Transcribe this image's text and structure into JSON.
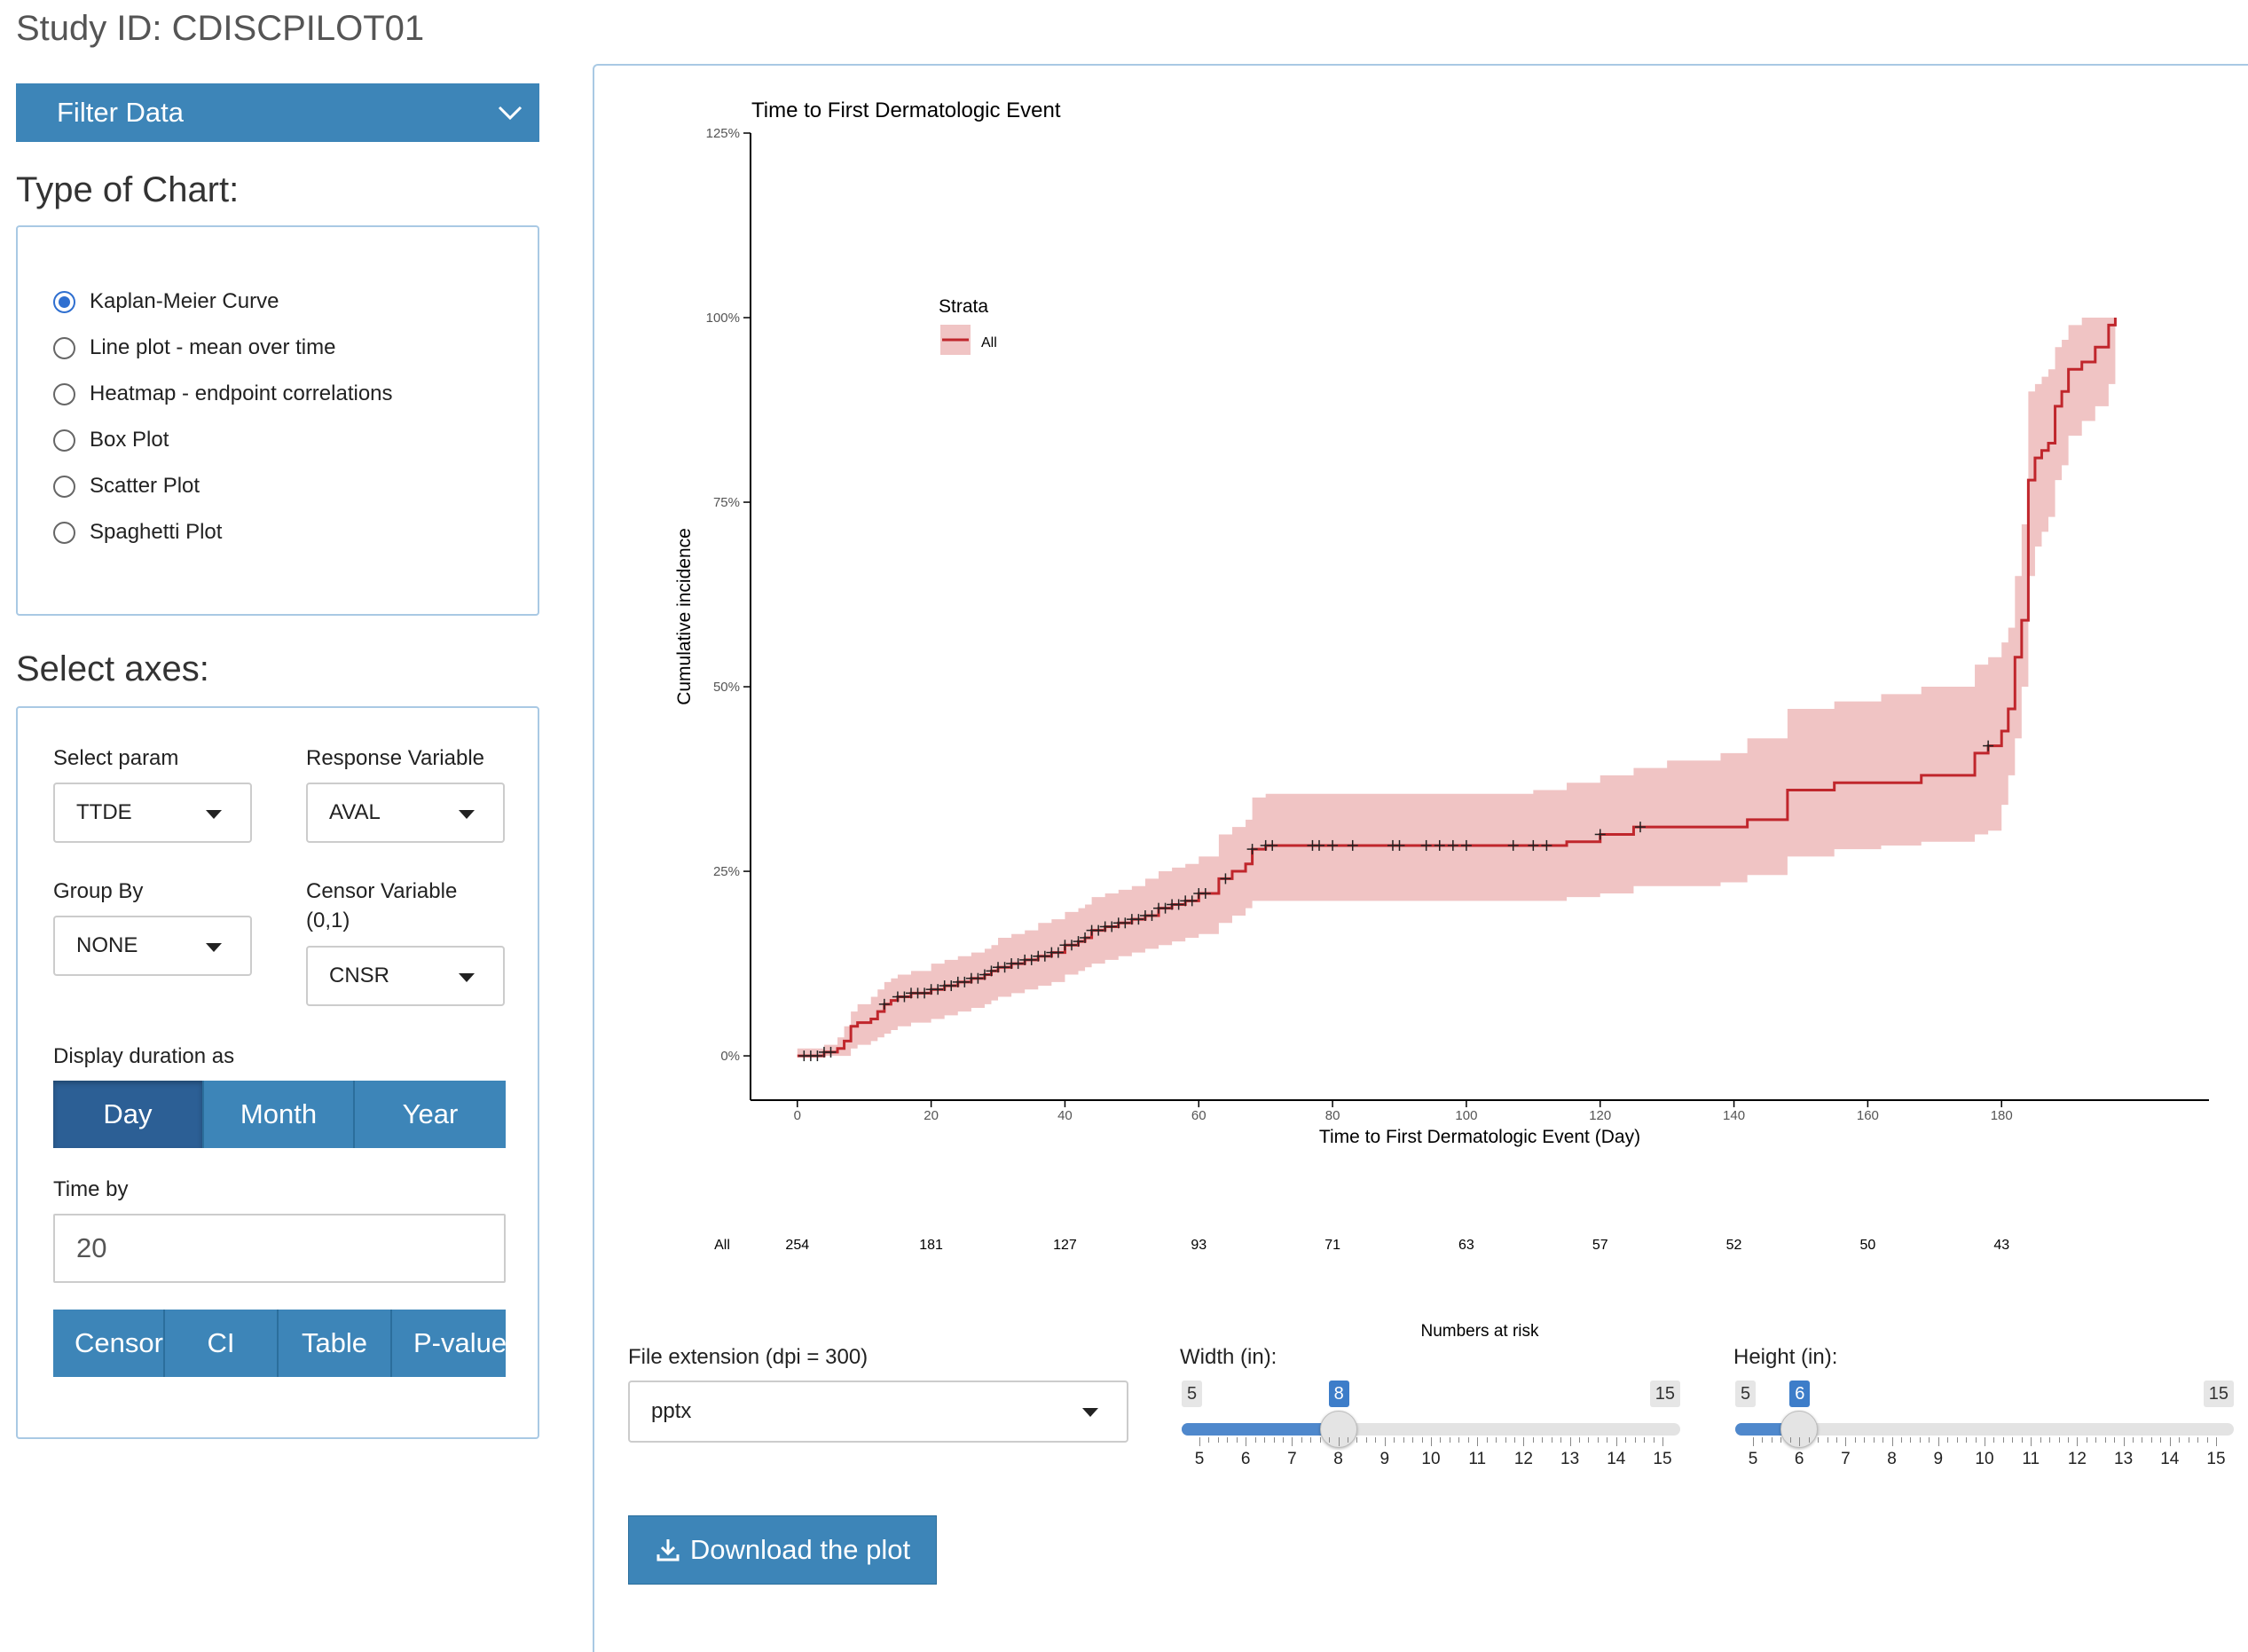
{
  "study_title": "Study ID: CDISCPILOT01",
  "filter_bar": {
    "label": "Filter Data",
    "icon": "chevron-down-icon"
  },
  "chart_type": {
    "title": "Type of Chart:",
    "options": [
      "Kaplan-Meier Curve",
      "Line plot - mean over time",
      "Heatmap - endpoint correlations",
      "Box Plot",
      "Scatter Plot",
      "Spaghetti Plot"
    ],
    "selected": "Kaplan-Meier Curve"
  },
  "axes": {
    "title": "Select axes:",
    "select_param": {
      "label": "Select param",
      "value": "TTDE"
    },
    "response_variable": {
      "label": "Response Variable",
      "value": "AVAL"
    },
    "group_by": {
      "label": "Group By",
      "value": "NONE"
    },
    "censor_variable": {
      "label": "Censor Variable (0,1)",
      "value": "CNSR"
    },
    "duration": {
      "label": "Display duration as",
      "options": [
        "Day",
        "Month",
        "Year"
      ],
      "selected": "Day"
    },
    "time_by": {
      "label": "Time by",
      "value": "20"
    },
    "toggles": [
      "Censor",
      "CI",
      "Table",
      "P-value"
    ]
  },
  "export": {
    "file_ext": {
      "label": "File extension (dpi = 300)",
      "value": "pptx"
    },
    "width": {
      "label": "Width (in):",
      "min": 5,
      "max": 15,
      "value": 8
    },
    "height": {
      "label": "Height (in):",
      "min": 5,
      "max": 15,
      "value": 6
    },
    "download_label": "Download the plot",
    "download_icon": "download-icon"
  },
  "colors": {
    "accent": "#3d85b8",
    "curve": "#c0262c",
    "band": "#f0c4c4"
  },
  "chart_data": {
    "type": "line",
    "title": "Time to First Dermatologic Event",
    "xlabel": "Time to First Dermatologic Event (Day)",
    "ylabel": "Cumulative incidence",
    "xlim": [
      -7,
      211
    ],
    "ylim": [
      -0.06,
      1.25
    ],
    "x_ticks": [
      0,
      20,
      40,
      60,
      80,
      100,
      120,
      140,
      160,
      180
    ],
    "y_ticks": [
      0,
      0.25,
      0.5,
      0.75,
      1.0,
      1.25
    ],
    "y_tick_labels": [
      "0%",
      "25%",
      "50%",
      "75%",
      "100%",
      "125%"
    ],
    "legend": {
      "title": "Strata",
      "entries": [
        "All"
      ],
      "placement": "top-left"
    },
    "series": [
      {
        "name": "All",
        "x": [
          0,
          4,
          6,
          7,
          8,
          9,
          11,
          12,
          13,
          14,
          15,
          17,
          20,
          22,
          24,
          26,
          28,
          29,
          30,
          32,
          34,
          36,
          38,
          40,
          42,
          43,
          44,
          46,
          48,
          50,
          52,
          54,
          56,
          58,
          60,
          63,
          65,
          67,
          68,
          70,
          75,
          80,
          90,
          100,
          110,
          115,
          120,
          125,
          130,
          138,
          142,
          148,
          155,
          162,
          168,
          176,
          178,
          180,
          181,
          182,
          183,
          184,
          185,
          186,
          187,
          188,
          189,
          190,
          192,
          194,
          196,
          197
        ],
        "y": [
          0,
          0.005,
          0.01,
          0.02,
          0.04,
          0.045,
          0.05,
          0.06,
          0.07,
          0.075,
          0.08,
          0.085,
          0.09,
          0.095,
          0.1,
          0.105,
          0.11,
          0.115,
          0.12,
          0.125,
          0.13,
          0.135,
          0.14,
          0.15,
          0.155,
          0.16,
          0.17,
          0.175,
          0.18,
          0.185,
          0.19,
          0.2,
          0.205,
          0.21,
          0.22,
          0.24,
          0.25,
          0.26,
          0.28,
          0.285,
          0.285,
          0.285,
          0.285,
          0.285,
          0.285,
          0.29,
          0.3,
          0.31,
          0.31,
          0.31,
          0.32,
          0.36,
          0.37,
          0.37,
          0.38,
          0.41,
          0.42,
          0.44,
          0.47,
          0.54,
          0.59,
          0.78,
          0.81,
          0.82,
          0.83,
          0.88,
          0.9,
          0.93,
          0.94,
          0.96,
          0.99,
          1.0
        ],
        "lower": [
          0,
          0,
          0,
          0,
          0.01,
          0.015,
          0.02,
          0.025,
          0.03,
          0.035,
          0.04,
          0.045,
          0.05,
          0.055,
          0.06,
          0.065,
          0.07,
          0.075,
          0.08,
          0.085,
          0.09,
          0.095,
          0.1,
          0.11,
          0.115,
          0.12,
          0.125,
          0.13,
          0.135,
          0.14,
          0.145,
          0.15,
          0.155,
          0.16,
          0.165,
          0.18,
          0.19,
          0.2,
          0.21,
          0.21,
          0.21,
          0.21,
          0.21,
          0.21,
          0.21,
          0.215,
          0.22,
          0.23,
          0.23,
          0.235,
          0.245,
          0.27,
          0.28,
          0.285,
          0.29,
          0.3,
          0.305,
          0.34,
          0.38,
          0.43,
          0.5,
          0.65,
          0.69,
          0.71,
          0.73,
          0.78,
          0.8,
          0.84,
          0.86,
          0.88,
          0.91,
          0.92
        ],
        "upper": [
          0.01,
          0.015,
          0.025,
          0.04,
          0.06,
          0.07,
          0.08,
          0.09,
          0.1,
          0.105,
          0.11,
          0.115,
          0.125,
          0.13,
          0.135,
          0.14,
          0.145,
          0.15,
          0.16,
          0.165,
          0.17,
          0.18,
          0.185,
          0.195,
          0.2,
          0.205,
          0.215,
          0.22,
          0.225,
          0.23,
          0.24,
          0.25,
          0.255,
          0.26,
          0.27,
          0.3,
          0.31,
          0.32,
          0.35,
          0.355,
          0.355,
          0.355,
          0.355,
          0.355,
          0.36,
          0.37,
          0.38,
          0.39,
          0.4,
          0.41,
          0.43,
          0.47,
          0.48,
          0.49,
          0.5,
          0.53,
          0.54,
          0.56,
          0.58,
          0.65,
          0.72,
          0.9,
          0.91,
          0.92,
          0.93,
          0.96,
          0.97,
          0.99,
          1.0,
          1.0,
          1.0,
          1.0
        ]
      }
    ],
    "censor_x": [
      1,
      2,
      3,
      4,
      5,
      13,
      15,
      16,
      17,
      18,
      19,
      20,
      21,
      22,
      23,
      24,
      25,
      26,
      27,
      28,
      29,
      30,
      31,
      32,
      33,
      34,
      35,
      36,
      37,
      38,
      39,
      40,
      41,
      42,
      43,
      44,
      45,
      46,
      47,
      48,
      49,
      50,
      51,
      52,
      53,
      54,
      55,
      56,
      57,
      58,
      59,
      60,
      61,
      64,
      68,
      70,
      71,
      77,
      78,
      80,
      83,
      89,
      90,
      94,
      96,
      98,
      100,
      107,
      110,
      112,
      120,
      126,
      178
    ],
    "risk_table": {
      "title": "Numbers at risk",
      "strata_label": "All",
      "times": [
        0,
        20,
        40,
        60,
        80,
        100,
        120,
        140,
        160,
        180
      ],
      "counts": [
        254,
        181,
        127,
        93,
        71,
        63,
        57,
        52,
        50,
        43
      ]
    }
  }
}
